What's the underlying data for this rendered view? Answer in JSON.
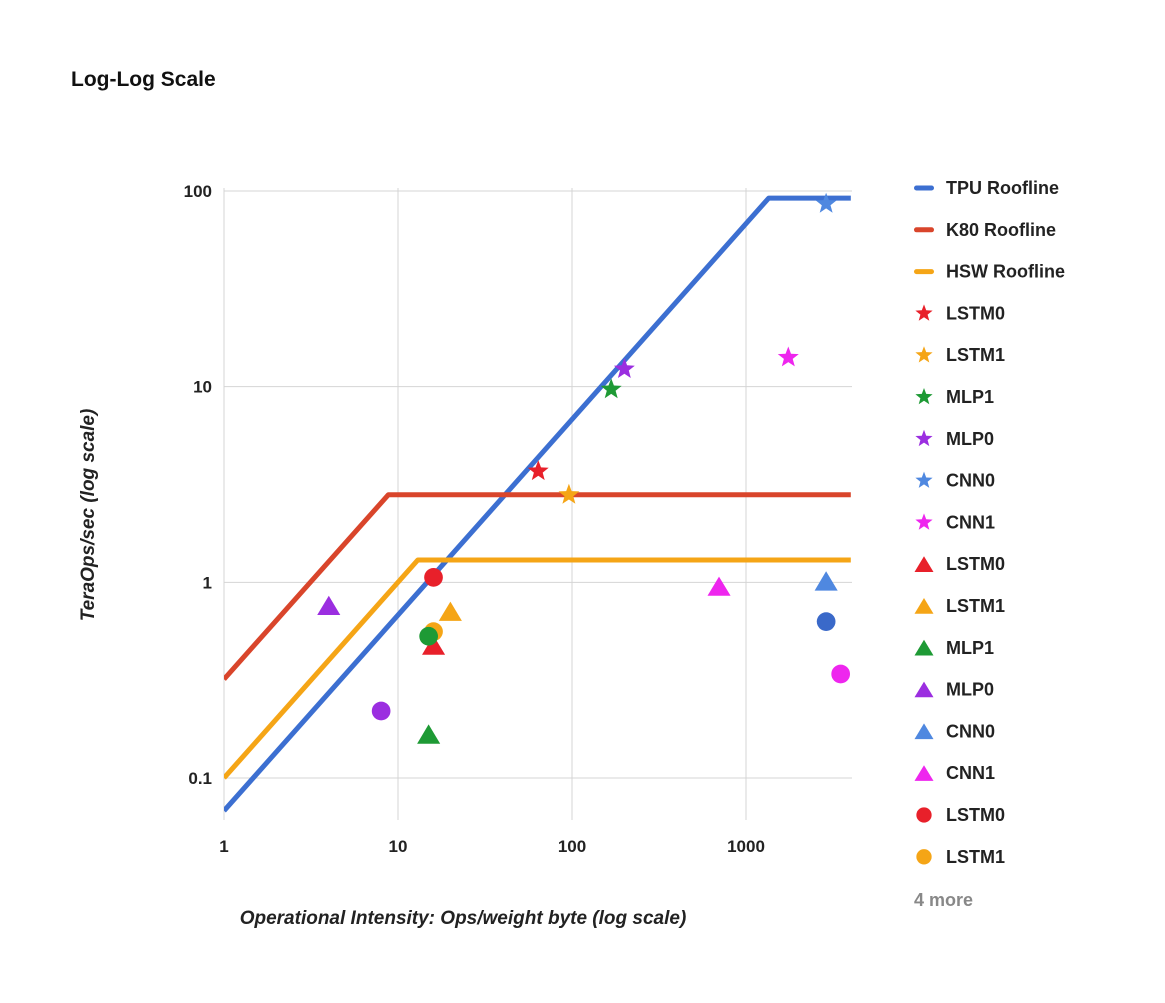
{
  "chart_data": {
    "type": "scatter",
    "title": "Log-Log Scale",
    "xlabel": "Operational Intensity: Ops/weight byte (log scale)",
    "ylabel": "TeraOps/sec (log scale)",
    "xscale": "log",
    "yscale": "log",
    "xlim": [
      1,
      4000
    ],
    "ylim": [
      0.055,
      100
    ],
    "x_ticks": [
      1,
      10,
      100,
      1000
    ],
    "x_tick_labels": [
      "1",
      "10",
      "100",
      "1000"
    ],
    "y_ticks": [
      0.1,
      1,
      10,
      100
    ],
    "y_tick_labels": [
      "0.1",
      "1",
      "10",
      "100"
    ],
    "grid": true,
    "legend_position": "right",
    "legend_more": "4 more",
    "rooflines": [
      {
        "name": "TPU Roofline",
        "color": "#3c6fd1",
        "points": [
          [
            1,
            0.068
          ],
          [
            1350,
            92
          ],
          [
            4000,
            92
          ]
        ]
      },
      {
        "name": "K80 Roofline",
        "color": "#d9452b",
        "points": [
          [
            1,
            0.32
          ],
          [
            8.8,
            2.8
          ],
          [
            4000,
            2.8
          ]
        ]
      },
      {
        "name": "HSW Roofline",
        "color": "#f5a516",
        "points": [
          [
            1,
            0.1
          ],
          [
            13,
            1.3
          ],
          [
            4000,
            1.3
          ]
        ]
      }
    ],
    "series": [
      {
        "name": "LSTM0",
        "marker": "star",
        "color": "#e8202a",
        "x": [
          64
        ],
        "y": [
          3.7
        ]
      },
      {
        "name": "LSTM1",
        "marker": "star",
        "color": "#f5a516",
        "x": [
          96
        ],
        "y": [
          2.8
        ]
      },
      {
        "name": "MLP1",
        "marker": "star",
        "color": "#1e9a35",
        "x": [
          168
        ],
        "y": [
          9.7
        ]
      },
      {
        "name": "MLP0",
        "marker": "star",
        "color": "#9b2ee0",
        "x": [
          200
        ],
        "y": [
          12.3
        ]
      },
      {
        "name": "CNN0",
        "marker": "star",
        "color": "#4f88e0",
        "x": [
          2888
        ],
        "y": [
          86
        ]
      },
      {
        "name": "CNN1",
        "marker": "star",
        "color": "#ee26ee",
        "x": [
          1750
        ],
        "y": [
          14.1
        ]
      },
      {
        "name": "LSTM0",
        "marker": "triangle",
        "color": "#e8202a",
        "x": [
          16
        ],
        "y": [
          0.47
        ]
      },
      {
        "name": "LSTM1",
        "marker": "triangle",
        "color": "#f5a516",
        "x": [
          20
        ],
        "y": [
          0.7
        ]
      },
      {
        "name": "MLP1",
        "marker": "triangle",
        "color": "#1e9a35",
        "x": [
          15
        ],
        "y": [
          0.165
        ]
      },
      {
        "name": "MLP0",
        "marker": "triangle",
        "color": "#9b2ee0",
        "x": [
          4
        ],
        "y": [
          0.75
        ]
      },
      {
        "name": "CNN0",
        "marker": "triangle",
        "color": "#4f88e0",
        "x": [
          2888
        ],
        "y": [
          1.0
        ]
      },
      {
        "name": "CNN1",
        "marker": "triangle",
        "color": "#ee26ee",
        "x": [
          700
        ],
        "y": [
          0.94
        ]
      },
      {
        "name": "LSTM0",
        "marker": "circle",
        "color": "#e8202a",
        "x": [
          16
        ],
        "y": [
          1.06
        ]
      },
      {
        "name": "LSTM1",
        "marker": "circle",
        "color": "#f5a516",
        "x": [
          16
        ],
        "y": [
          0.56
        ]
      },
      {
        "name": "MLP1",
        "marker": "circle",
        "color": "#1e9a35",
        "x": [
          15
        ],
        "y": [
          0.53
        ],
        "in_legend": false
      },
      {
        "name": "MLP0",
        "marker": "circle",
        "color": "#9b2ee0",
        "x": [
          8
        ],
        "y": [
          0.22
        ],
        "in_legend": false
      },
      {
        "name": "CNN0",
        "marker": "circle",
        "color": "#3a69c9",
        "x": [
          2888
        ],
        "y": [
          0.63
        ],
        "in_legend": false
      },
      {
        "name": "CNN1",
        "marker": "circle",
        "color": "#ee26ee",
        "x": [
          3500
        ],
        "y": [
          0.34
        ],
        "in_legend": false
      }
    ]
  }
}
